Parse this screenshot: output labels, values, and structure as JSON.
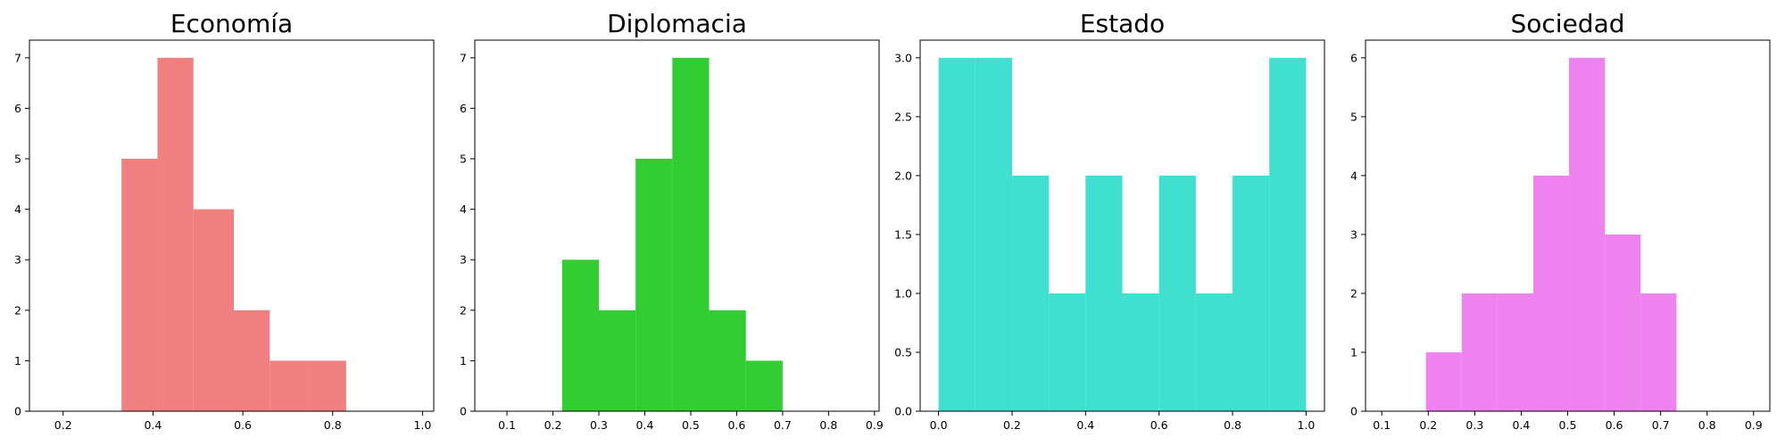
{
  "chart_data": [
    {
      "type": "bar",
      "title": "Economía",
      "color": "#f08080",
      "xlim": [
        0.125,
        1.025
      ],
      "ylim": [
        0,
        7.35
      ],
      "xticks": [
        0.2,
        0.4,
        0.6,
        0.8,
        1.0
      ],
      "xtick_labels": [
        "0.2",
        "0.4",
        "0.6",
        "0.8",
        "1.0"
      ],
      "yticks": [
        0,
        1,
        2,
        3,
        4,
        5,
        6,
        7
      ],
      "ytick_labels": [
        "0",
        "1",
        "2",
        "3",
        "4",
        "5",
        "6",
        "7"
      ],
      "bins": [
        {
          "x0": 0.33,
          "x1": 0.41,
          "count": 5
        },
        {
          "x0": 0.41,
          "x1": 0.49,
          "count": 7
        },
        {
          "x0": 0.49,
          "x1": 0.58,
          "count": 4
        },
        {
          "x0": 0.58,
          "x1": 0.66,
          "count": 2
        },
        {
          "x0": 0.66,
          "x1": 0.745,
          "count": 1
        },
        {
          "x0": 0.745,
          "x1": 0.83,
          "count": 1
        }
      ]
    },
    {
      "type": "bar",
      "title": "Diplomacia",
      "color": "#32cd32",
      "xlim": [
        0.03,
        0.91
      ],
      "ylim": [
        0,
        7.35
      ],
      "xticks": [
        0.1,
        0.2,
        0.3,
        0.4,
        0.5,
        0.6,
        0.7,
        0.8,
        0.9
      ],
      "xtick_labels": [
        "0.1",
        "0.2",
        "0.3",
        "0.4",
        "0.5",
        "0.6",
        "0.7",
        "0.8",
        "0.9"
      ],
      "yticks": [
        0,
        1,
        2,
        3,
        4,
        5,
        6,
        7
      ],
      "ytick_labels": [
        "0",
        "1",
        "2",
        "3",
        "4",
        "5",
        "6",
        "7"
      ],
      "bins": [
        {
          "x0": 0.22,
          "x1": 0.3,
          "count": 3
        },
        {
          "x0": 0.3,
          "x1": 0.38,
          "count": 2
        },
        {
          "x0": 0.38,
          "x1": 0.46,
          "count": 5
        },
        {
          "x0": 0.46,
          "x1": 0.54,
          "count": 7
        },
        {
          "x0": 0.54,
          "x1": 0.62,
          "count": 2
        },
        {
          "x0": 0.62,
          "x1": 0.7,
          "count": 1
        }
      ]
    },
    {
      "type": "bar",
      "title": "Estado",
      "color": "#40e0d0",
      "xlim": [
        -0.05,
        1.05
      ],
      "ylim": [
        0,
        3.15
      ],
      "xticks": [
        0.0,
        0.2,
        0.4,
        0.6,
        0.8,
        1.0
      ],
      "xtick_labels": [
        "0.0",
        "0.2",
        "0.4",
        "0.6",
        "0.8",
        "1.0"
      ],
      "yticks": [
        0,
        0.5,
        1.0,
        1.5,
        2.0,
        2.5,
        3.0
      ],
      "ytick_labels": [
        "0.0",
        "0.5",
        "1.0",
        "1.5",
        "2.0",
        "2.5",
        "3.0"
      ],
      "bins": [
        {
          "x0": 0.0,
          "x1": 0.1,
          "count": 3
        },
        {
          "x0": 0.1,
          "x1": 0.2,
          "count": 3
        },
        {
          "x0": 0.2,
          "x1": 0.3,
          "count": 2
        },
        {
          "x0": 0.3,
          "x1": 0.4,
          "count": 1
        },
        {
          "x0": 0.4,
          "x1": 0.5,
          "count": 2
        },
        {
          "x0": 0.5,
          "x1": 0.6,
          "count": 1
        },
        {
          "x0": 0.6,
          "x1": 0.7,
          "count": 2
        },
        {
          "x0": 0.7,
          "x1": 0.8,
          "count": 1
        },
        {
          "x0": 0.8,
          "x1": 0.9,
          "count": 2
        },
        {
          "x0": 0.9,
          "x1": 1.0,
          "count": 3
        }
      ]
    },
    {
      "type": "bar",
      "title": "Sociedad",
      "color": "#ee82ee",
      "xlim": [
        0.065,
        0.935
      ],
      "ylim": [
        0,
        6.3
      ],
      "xticks": [
        0.1,
        0.2,
        0.3,
        0.4,
        0.5,
        0.6,
        0.7,
        0.8,
        0.9
      ],
      "xtick_labels": [
        "0.1",
        "0.2",
        "0.3",
        "0.4",
        "0.5",
        "0.6",
        "0.7",
        "0.8",
        "0.9"
      ],
      "yticks": [
        0,
        1,
        2,
        3,
        4,
        5,
        6
      ],
      "ytick_labels": [
        "0",
        "1",
        "2",
        "3",
        "4",
        "5",
        "6"
      ],
      "bins": [
        {
          "x0": 0.195,
          "x1": 0.272,
          "count": 1
        },
        {
          "x0": 0.272,
          "x1": 0.349,
          "count": 2
        },
        {
          "x0": 0.349,
          "x1": 0.426,
          "count": 2
        },
        {
          "x0": 0.426,
          "x1": 0.503,
          "count": 4
        },
        {
          "x0": 0.503,
          "x1": 0.58,
          "count": 6
        },
        {
          "x0": 0.58,
          "x1": 0.657,
          "count": 3
        },
        {
          "x0": 0.657,
          "x1": 0.734,
          "count": 2
        }
      ]
    }
  ]
}
